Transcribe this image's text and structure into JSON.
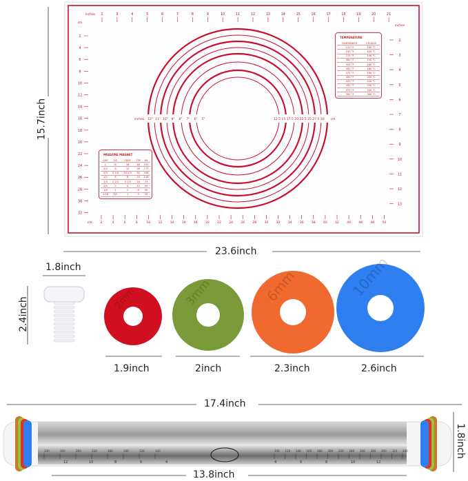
{
  "mat": {
    "top_unit": "inches",
    "top_ticks": [
      "2",
      "3",
      "4",
      "5",
      "6",
      "7",
      "8",
      "9",
      "10",
      "11",
      "12",
      "13",
      "14",
      "15",
      "16",
      "17",
      "18",
      "19",
      "20",
      "21"
    ],
    "left_unit": "cm",
    "left_ticks": [
      "2",
      "4",
      "6",
      "8",
      "10",
      "12",
      "14",
      "16",
      "18",
      "20",
      "22",
      "24",
      "26",
      "28",
      "30",
      "32"
    ],
    "right_unit": "inches",
    "right_ticks": [
      "2",
      "3",
      "4",
      "5",
      "6",
      "7",
      "8",
      "9",
      "10",
      "11",
      "12",
      "13"
    ],
    "bottom_unit": "cm",
    "bottom_ticks": [
      "2",
      "4",
      "6",
      "8",
      "10",
      "12",
      "14",
      "16",
      "18",
      "20",
      "22",
      "24",
      "26",
      "28",
      "30",
      "32",
      "34",
      "36",
      "38",
      "40",
      "42",
      "44",
      "46",
      "48",
      "50"
    ],
    "circle_inch_unit": "inches",
    "circle_inch_labels": [
      "12\"",
      "11\"",
      "10\"",
      "9\"",
      "8\"",
      "7\"",
      "6\"",
      "5\""
    ],
    "circle_cm_labels": [
      "12.5",
      "15",
      "17.5",
      "20",
      "22.5",
      "25",
      "27.5",
      "30"
    ],
    "circle_cm_unit": "cm",
    "temperature": {
      "title": "TEMPERATURE",
      "headers": [
        "FAHRENHEIT",
        "CELSIUS"
      ],
      "rows": [
        [
          "212 °F",
          "100 °C"
        ],
        [
          "250 °F",
          "120 °C"
        ],
        [
          "275 °F",
          "140 °C"
        ],
        [
          "300 °F",
          "150 °C"
        ],
        [
          "325 °F",
          "160 °C"
        ],
        [
          "350 °F",
          "180 °C"
        ],
        [
          "375 °F",
          "190 °C"
        ],
        [
          "400 °F",
          "200 °C"
        ],
        [
          "425 °F",
          "220 °C"
        ],
        [
          "450 °F",
          "230 °C"
        ],
        [
          "475 °F",
          "240 °C"
        ],
        [
          "500 °F",
          "260 °C"
        ]
      ]
    },
    "measure": {
      "title": "MEASURE MAGNET",
      "headers": [
        "CUP",
        "OZ",
        "TBSP",
        "TSP",
        "ML"
      ],
      "rows": [
        [
          "1",
          "8",
          "16",
          "48",
          "237"
        ],
        [
          "3/4",
          "6",
          "12",
          "36",
          "177"
        ],
        [
          "2/3",
          "5 1/3",
          "10 2/3",
          "32",
          "158"
        ],
        [
          "1/2",
          "4",
          "8",
          "24",
          "118"
        ],
        [
          "1/3",
          "2 2/3",
          "5 1/3",
          "16",
          "79"
        ],
        [
          "1/4",
          "2",
          "4",
          "12",
          "59"
        ],
        [
          "1/8",
          "1",
          "2",
          "6",
          "30"
        ],
        [
          "1/16",
          "1/2",
          "1",
          "3",
          "15"
        ]
      ]
    },
    "color": "#c8102e"
  },
  "dimensions": {
    "mat_height": "15.7inch",
    "mat_width": "23.6inch",
    "bolt_width": "1.8inch",
    "bolt_height": "2.4inch",
    "rings": [
      "1.9inch",
      "2inch",
      "2.3inch",
      "2.6inch"
    ],
    "pin_length": "17.4inch",
    "pin_diameter": "1.8inch",
    "pin_body_length": "13.8inch"
  },
  "rings": [
    {
      "label": "2mm",
      "color": "#d01020"
    },
    {
      "label": "3mm",
      "color": "#7a9a3a"
    },
    {
      "label": "6mm",
      "color": "#f06a30"
    },
    {
      "label": "10mm",
      "color": "#2f7ff0"
    }
  ],
  "pin": {
    "left_scale": [
      "340",
      "300",
      "260",
      "220",
      "180",
      "140",
      "120",
      "100"
    ],
    "right_scale": [
      "100",
      "120",
      "140",
      "160",
      "180",
      "200",
      "220",
      "240",
      "260",
      "280",
      "300",
      "320",
      "340"
    ],
    "left_inch": [
      "12",
      "10",
      "8",
      "6",
      "4"
    ],
    "right_inch": [
      "4",
      "6",
      "8",
      "10",
      "12"
    ]
  }
}
